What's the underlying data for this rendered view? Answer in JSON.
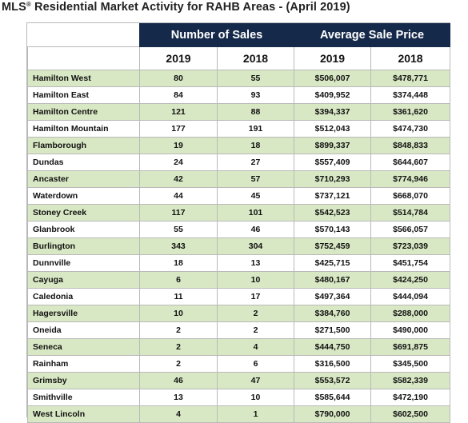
{
  "title": {
    "prefix": "MLS",
    "reg": "®",
    "rest": " Residential Market Activity for RAHB Areas - (April 2019)"
  },
  "header": {
    "group_sales": "Number of Sales",
    "group_price": "Average Sale Price",
    "years": [
      "2019",
      "2018",
      "2019",
      "2018"
    ]
  },
  "rows": [
    {
      "area": "Hamilton West",
      "sales_2019": "80",
      "sales_2018": "55",
      "price_2019": "$506,007",
      "price_2018": "$478,771"
    },
    {
      "area": "Hamilton East",
      "sales_2019": "84",
      "sales_2018": "93",
      "price_2019": "$409,952",
      "price_2018": "$374,448"
    },
    {
      "area": "Hamilton Centre",
      "sales_2019": "121",
      "sales_2018": "88",
      "price_2019": "$394,337",
      "price_2018": "$361,620"
    },
    {
      "area": "Hamilton Mountain",
      "sales_2019": "177",
      "sales_2018": "191",
      "price_2019": "$512,043",
      "price_2018": "$474,730"
    },
    {
      "area": "Flamborough",
      "sales_2019": "19",
      "sales_2018": "18",
      "price_2019": "$899,337",
      "price_2018": "$848,833"
    },
    {
      "area": "Dundas",
      "sales_2019": "24",
      "sales_2018": "27",
      "price_2019": "$557,409",
      "price_2018": "$644,607"
    },
    {
      "area": "Ancaster",
      "sales_2019": "42",
      "sales_2018": "57",
      "price_2019": "$710,293",
      "price_2018": "$774,946"
    },
    {
      "area": "Waterdown",
      "sales_2019": "44",
      "sales_2018": "45",
      "price_2019": "$737,121",
      "price_2018": "$668,070"
    },
    {
      "area": "Stoney Creek",
      "sales_2019": "117",
      "sales_2018": "101",
      "price_2019": "$542,523",
      "price_2018": "$514,784"
    },
    {
      "area": "Glanbrook",
      "sales_2019": "55",
      "sales_2018": "46",
      "price_2019": "$570,143",
      "price_2018": "$566,057"
    },
    {
      "area": "Burlington",
      "sales_2019": "343",
      "sales_2018": "304",
      "price_2019": "$752,459",
      "price_2018": "$723,039"
    },
    {
      "area": "Dunnville",
      "sales_2019": "18",
      "sales_2018": "13",
      "price_2019": "$425,715",
      "price_2018": "$451,754"
    },
    {
      "area": "Cayuga",
      "sales_2019": "6",
      "sales_2018": "10",
      "price_2019": "$480,167",
      "price_2018": "$424,250"
    },
    {
      "area": "Caledonia",
      "sales_2019": "11",
      "sales_2018": "17",
      "price_2019": "$497,364",
      "price_2018": "$444,094"
    },
    {
      "area": "Hagersville",
      "sales_2019": "10",
      "sales_2018": "2",
      "price_2019": "$384,760",
      "price_2018": "$288,000"
    },
    {
      "area": "Oneida",
      "sales_2019": "2",
      "sales_2018": "2",
      "price_2019": "$271,500",
      "price_2018": "$490,000"
    },
    {
      "area": "Seneca",
      "sales_2019": "2",
      "sales_2018": "4",
      "price_2019": "$444,750",
      "price_2018": "$691,875"
    },
    {
      "area": "Rainham",
      "sales_2019": "2",
      "sales_2018": "6",
      "price_2019": "$316,500",
      "price_2018": "$345,500"
    },
    {
      "area": "Grimsby",
      "sales_2019": "46",
      "sales_2018": "47",
      "price_2019": "$553,572",
      "price_2018": "$582,339"
    },
    {
      "area": "Smithville",
      "sales_2019": "13",
      "sales_2018": "10",
      "price_2019": "$585,644",
      "price_2018": "$472,190"
    },
    {
      "area": "West Lincoln",
      "sales_2019": "4",
      "sales_2018": "1",
      "price_2019": "$790,000",
      "price_2018": "$602,500"
    }
  ],
  "colors": {
    "header_bg": "#15294a",
    "band_green": "#d9e8c4",
    "border": "#b9b9b9"
  }
}
